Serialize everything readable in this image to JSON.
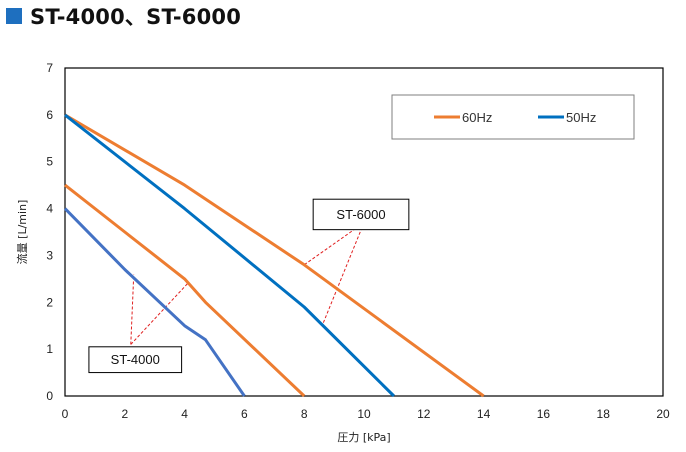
{
  "page": {
    "title": "ST-4000、ST-6000"
  },
  "colors": {
    "orange": "#ed7d31",
    "blue_50hz": "#0070c0",
    "blue_st4000": "#4472c4",
    "callout_line": "#e02020",
    "title_square": "#1e6fbf"
  },
  "chart_data": {
    "type": "line",
    "xlabel": "圧力 [kPa]",
    "ylabel": "流量 [L/min]",
    "xlim": [
      0,
      20
    ],
    "ylim": [
      0,
      7
    ],
    "xticks": [
      "0",
      "2",
      "4",
      "6",
      "8",
      "10",
      "12",
      "14",
      "16",
      "18",
      "20"
    ],
    "yticks": [
      "0",
      "1",
      "2",
      "3",
      "4",
      "5",
      "6",
      "7"
    ],
    "grid": false,
    "legend": {
      "placement": "top-right",
      "entries": [
        "60Hz",
        "50Hz"
      ]
    },
    "series": [
      {
        "model": "ST-6000",
        "freq": "60Hz",
        "color": "orange",
        "x": [
          0,
          4,
          8,
          14
        ],
        "y": [
          6.0,
          4.5,
          2.8,
          0
        ]
      },
      {
        "model": "ST-6000",
        "freq": "50Hz",
        "color": "blue_50hz",
        "x": [
          0,
          4,
          8,
          11
        ],
        "y": [
          6.0,
          4.0,
          1.9,
          0
        ]
      },
      {
        "model": "ST-4000",
        "freq": "60Hz",
        "color": "orange",
        "x": [
          0,
          2,
          4,
          4.7,
          8
        ],
        "y": [
          4.5,
          3.5,
          2.5,
          2.0,
          0
        ]
      },
      {
        "model": "ST-4000",
        "freq": "50Hz",
        "color": "blue_st4000",
        "x": [
          0,
          2,
          4,
          4.7,
          6
        ],
        "y": [
          4.0,
          2.7,
          1.5,
          1.2,
          0
        ]
      }
    ],
    "annotations": [
      {
        "label": "ST-6000",
        "box": [
          8.3,
          4.2,
          11.5,
          3.55
        ],
        "anchor": [
          10.0,
          3.7
        ],
        "targets": [
          [
            8.0,
            2.8
          ],
          [
            8.6,
            1.5
          ]
        ]
      },
      {
        "label": "ST-4000",
        "box": [
          0.8,
          1.05,
          3.9,
          0.5
        ],
        "anchor": [
          2.2,
          1.1
        ],
        "targets": [
          [
            2.3,
            2.6
          ],
          [
            4.1,
            2.4
          ]
        ]
      }
    ]
  }
}
